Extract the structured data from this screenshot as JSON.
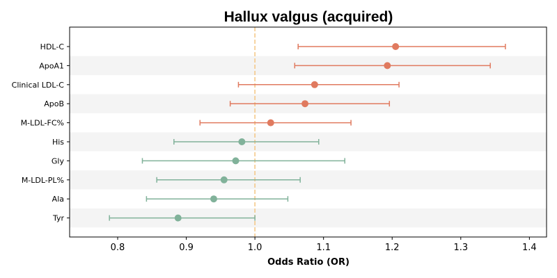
{
  "chart_data": {
    "type": "forest",
    "title": "Hallux valgus (acquired)",
    "xlabel": "Odds Ratio (OR)",
    "ylabel": "",
    "xlim": [
      0.73,
      1.425
    ],
    "xticks": [
      0.8,
      0.9,
      1.0,
      1.1,
      1.2,
      1.3,
      1.4
    ],
    "xtick_labels": [
      "0.8",
      "0.9",
      "1.0",
      "1.1",
      "1.2",
      "1.3",
      "1.4"
    ],
    "reference_line": 1.0,
    "reference_color": "#f5c98a",
    "positive_color": "#e07a5f",
    "negative_color": "#81b29a",
    "band_color": "#f4f4f4",
    "points": [
      {
        "label": "HDL-C",
        "or": 1.205,
        "lower": 1.063,
        "upper": 1.365
      },
      {
        "label": "ApoA1",
        "or": 1.193,
        "lower": 1.058,
        "upper": 1.343
      },
      {
        "label": "Clinical LDL-C",
        "or": 1.087,
        "lower": 0.976,
        "upper": 1.21
      },
      {
        "label": "ApoB",
        "or": 1.073,
        "lower": 0.964,
        "upper": 1.196
      },
      {
        "label": "M-LDL-FC%",
        "or": 1.023,
        "lower": 0.92,
        "upper": 1.14
      },
      {
        "label": "His",
        "or": 0.981,
        "lower": 0.882,
        "upper": 1.093
      },
      {
        "label": "Gly",
        "or": 0.972,
        "lower": 0.836,
        "upper": 1.131
      },
      {
        "label": "M-LDL-PL%",
        "or": 0.955,
        "lower": 0.857,
        "upper": 1.066
      },
      {
        "label": "Ala",
        "or": 0.94,
        "lower": 0.842,
        "upper": 1.048
      },
      {
        "label": "Tyr",
        "or": 0.888,
        "lower": 0.788,
        "upper": 1.0
      }
    ]
  }
}
